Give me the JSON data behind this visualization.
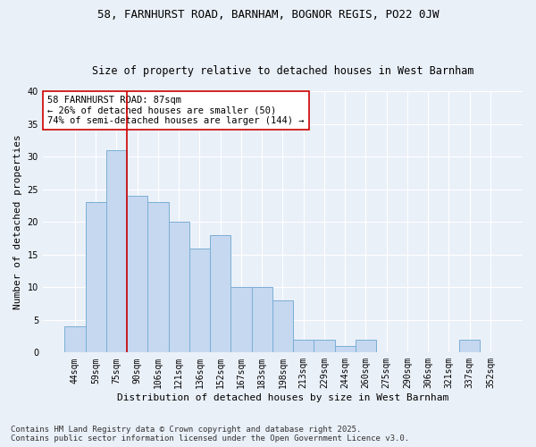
{
  "title1": "58, FARNHURST ROAD, BARNHAM, BOGNOR REGIS, PO22 0JW",
  "title2": "Size of property relative to detached houses in West Barnham",
  "xlabel": "Distribution of detached houses by size in West Barnham",
  "ylabel": "Number of detached properties",
  "categories": [
    "44sqm",
    "59sqm",
    "75sqm",
    "90sqm",
    "106sqm",
    "121sqm",
    "136sqm",
    "152sqm",
    "167sqm",
    "183sqm",
    "198sqm",
    "213sqm",
    "229sqm",
    "244sqm",
    "260sqm",
    "275sqm",
    "290sqm",
    "306sqm",
    "321sqm",
    "337sqm",
    "352sqm"
  ],
  "values": [
    4,
    23,
    31,
    24,
    23,
    20,
    16,
    18,
    10,
    10,
    8,
    2,
    2,
    1,
    2,
    0,
    0,
    0,
    0,
    2,
    0
  ],
  "bar_color": "#c5d8f0",
  "bar_edge_color": "#7aaed6",
  "vline_x": 2.5,
  "vline_color": "#cc0000",
  "annotation_text": "58 FARNHURST ROAD: 87sqm\n← 26% of detached houses are smaller (50)\n74% of semi-detached houses are larger (144) →",
  "annotation_box_color": "#ffffff",
  "annotation_box_edge_color": "#cc0000",
  "ylim": [
    0,
    40
  ],
  "yticks": [
    0,
    5,
    10,
    15,
    20,
    25,
    30,
    35,
    40
  ],
  "bg_color": "#eaf0f8",
  "grid_color": "#ffffff",
  "footer1": "Contains HM Land Registry data © Crown copyright and database right 2025.",
  "footer2": "Contains public sector information licensed under the Open Government Licence v3.0.",
  "title_fontsize": 9,
  "subtitle_fontsize": 8.5,
  "axis_label_fontsize": 8,
  "tick_fontsize": 7,
  "annotation_fontsize": 7.5,
  "footer_fontsize": 6.5
}
